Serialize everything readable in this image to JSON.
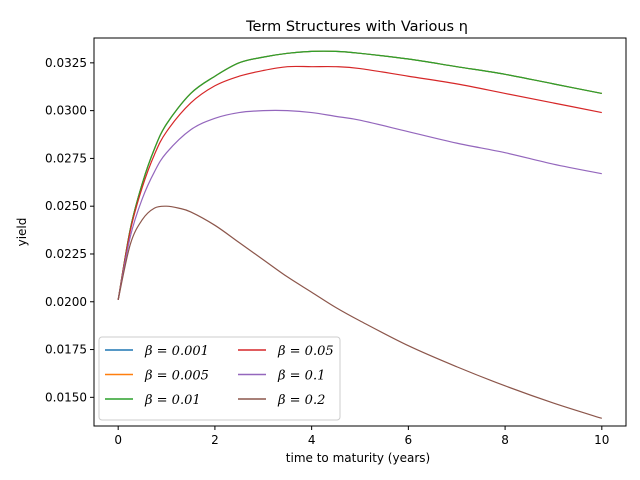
{
  "chart_data": {
    "type": "line",
    "title": "Term Structures with Various η",
    "xlabel": "time to maturity (years)",
    "ylabel": "yield",
    "xlim": [
      -0.5,
      10.5
    ],
    "ylim": [
      0.0135,
      0.0338
    ],
    "xticks": [
      0,
      2,
      4,
      6,
      8,
      10
    ],
    "xtick_labels": [
      "0",
      "2",
      "4",
      "6",
      "8",
      "10"
    ],
    "yticks": [
      0.015,
      0.0175,
      0.02,
      0.0225,
      0.025,
      0.0275,
      0.03,
      0.0325
    ],
    "ytick_labels": [
      "0.0150",
      "0.0175",
      "0.0200",
      "0.0225",
      "0.0250",
      "0.0275",
      "0.0300",
      "0.0325"
    ],
    "grid": false,
    "legend": {
      "placement": "lower-left",
      "columns": 2
    },
    "series": [
      {
        "name": "β = 0.001",
        "color": "#1f77b4",
        "x": [
          0,
          0.25,
          0.5,
          0.75,
          1,
          1.5,
          2,
          2.5,
          3,
          3.5,
          4,
          4.5,
          5,
          6,
          7,
          8,
          9,
          10
        ],
        "y": [
          0.0201,
          0.0238,
          0.0262,
          0.028,
          0.0293,
          0.0309,
          0.0318,
          0.0325,
          0.0328,
          0.033,
          0.0331,
          0.0331,
          0.033,
          0.0327,
          0.0323,
          0.0319,
          0.0314,
          0.0309
        ]
      },
      {
        "name": "β = 0.005",
        "color": "#ff7f0e",
        "x": [
          0,
          0.25,
          0.5,
          0.75,
          1,
          1.5,
          2,
          2.5,
          3,
          3.5,
          4,
          4.5,
          5,
          6,
          7,
          8,
          9,
          10
        ],
        "y": [
          0.0201,
          0.0238,
          0.0262,
          0.028,
          0.0293,
          0.0309,
          0.0318,
          0.0325,
          0.0328,
          0.033,
          0.0331,
          0.0331,
          0.033,
          0.0327,
          0.0323,
          0.0319,
          0.0314,
          0.0309
        ]
      },
      {
        "name": "β = 0.01",
        "color": "#2ca02c",
        "x": [
          0,
          0.25,
          0.5,
          0.75,
          1,
          1.5,
          2,
          2.5,
          3,
          3.5,
          4,
          4.5,
          5,
          6,
          7,
          8,
          9,
          10
        ],
        "y": [
          0.0201,
          0.0238,
          0.0262,
          0.028,
          0.0293,
          0.0309,
          0.0318,
          0.0325,
          0.0328,
          0.033,
          0.0331,
          0.0331,
          0.033,
          0.0327,
          0.0323,
          0.0319,
          0.0314,
          0.0309
        ]
      },
      {
        "name": "β = 0.05",
        "color": "#d62728",
        "x": [
          0,
          0.25,
          0.5,
          0.75,
          1,
          1.5,
          2,
          2.5,
          3,
          3.5,
          4,
          4.5,
          5,
          6,
          7,
          8,
          9,
          10
        ],
        "y": [
          0.0201,
          0.0237,
          0.026,
          0.0277,
          0.0289,
          0.0304,
          0.0313,
          0.0318,
          0.0321,
          0.0323,
          0.0323,
          0.0323,
          0.0322,
          0.0318,
          0.0314,
          0.0309,
          0.0304,
          0.0299
        ]
      },
      {
        "name": "β = 0.1",
        "color": "#9467bd",
        "x": [
          0,
          0.25,
          0.5,
          0.75,
          1,
          1.5,
          2,
          2.5,
          3,
          3.5,
          4,
          4.5,
          5,
          6,
          7,
          8,
          9,
          10
        ],
        "y": [
          0.0201,
          0.0234,
          0.0254,
          0.0268,
          0.0278,
          0.029,
          0.0296,
          0.0299,
          0.03,
          0.03,
          0.0299,
          0.0297,
          0.0295,
          0.0289,
          0.0283,
          0.0278,
          0.0272,
          0.0267
        ]
      },
      {
        "name": "β = 0.2",
        "color": "#8c564b",
        "x": [
          0,
          0.25,
          0.5,
          0.75,
          1,
          1.25,
          1.5,
          2,
          2.5,
          3,
          3.5,
          4,
          4.5,
          5,
          6,
          7,
          8,
          9,
          10
        ],
        "y": [
          0.0201,
          0.023,
          0.0243,
          0.0249,
          0.025,
          0.0249,
          0.0247,
          0.024,
          0.0231,
          0.0222,
          0.0213,
          0.0205,
          0.0197,
          0.019,
          0.0177,
          0.0166,
          0.0156,
          0.0147,
          0.0139
        ]
      }
    ]
  }
}
